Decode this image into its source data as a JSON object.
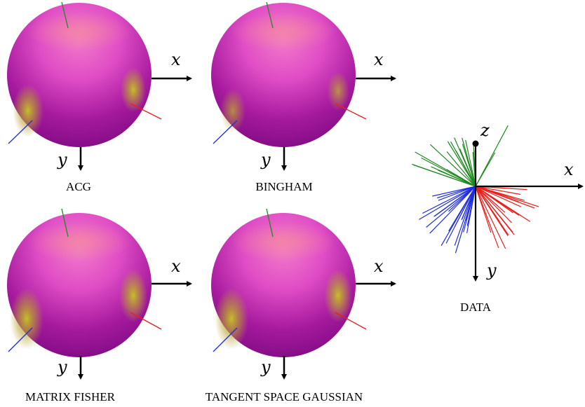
{
  "panels": [
    {
      "caption": "ACG",
      "x_label": "x",
      "y_label": "y"
    },
    {
      "caption": "BINGHAM",
      "x_label": "x",
      "y_label": "y"
    },
    {
      "caption": "MATRIX FISHER",
      "x_label": "x",
      "y_label": "y"
    },
    {
      "caption": "TANGENT SPACE GAUSSIAN",
      "x_label": "x",
      "y_label": "y"
    }
  ],
  "data_panel": {
    "caption": "DATA",
    "x_label": "x",
    "y_label": "y",
    "z_label": "z"
  },
  "colors": {
    "sphere_high": "#f06ad0",
    "sphere_mid": "#c935b8",
    "sphere_low": "#8a0a8a",
    "density_peak": "#c9c21a",
    "axis_red": "#e8201c",
    "axis_green": "#1e8a1e",
    "axis_blue": "#1f2de0",
    "axis_black": "#000000"
  }
}
